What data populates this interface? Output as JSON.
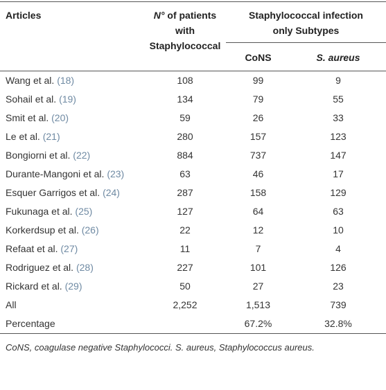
{
  "table": {
    "header": {
      "articles": "Articles",
      "patients_symbol": "N°",
      "patients_rest": "of patients with Staphylococcal",
      "group": "Staphylococcal infection only Subtypes",
      "cons": "CoNS",
      "aureus": "S. aureus"
    },
    "rows": [
      [
        "Wang et al.",
        "(18)",
        "108",
        "99",
        "9"
      ],
      [
        "Sohail et al.",
        "(19)",
        "134",
        "79",
        "55"
      ],
      [
        "Smit et al.",
        "(20)",
        "59",
        "26",
        "33"
      ],
      [
        "Le et al.",
        "(21)",
        "280",
        "157",
        "123"
      ],
      [
        "Bongiorni et al.",
        "(22)",
        "884",
        "737",
        "147"
      ],
      [
        "Durante-Mangoni et al.",
        "(23)",
        "63",
        "46",
        "17"
      ],
      [
        "Esquer Garrigos et al.",
        "(24)",
        "287",
        "158",
        "129"
      ],
      [
        "Fukunaga et al.",
        "(25)",
        "127",
        "64",
        "63"
      ],
      [
        "Korkerdsup et al.",
        "(26)",
        "22",
        "12",
        "10"
      ],
      [
        "Refaat et al.",
        "(27)",
        "11",
        "7",
        "4"
      ],
      [
        "Rodriguez et al.",
        "(28)",
        "227",
        "101",
        "126"
      ],
      [
        "Rickard et al.",
        "(29)",
        "50",
        "27",
        "23"
      ]
    ],
    "summary": [
      [
        "All",
        "2,252",
        "1,513",
        "739"
      ],
      [
        "Percentage",
        "",
        "67.2%",
        "32.8%"
      ]
    ],
    "footnote": "CoNS, coagulase negative Staphylococci. S. aureus, Staphylococcus aureus."
  }
}
